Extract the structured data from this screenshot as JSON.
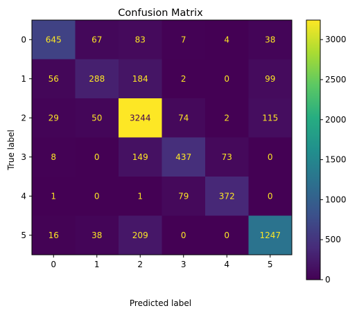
{
  "chart_data": {
    "type": "heatmap",
    "title": "Confusion Matrix",
    "xlabel": "Predicted label",
    "ylabel": "True label",
    "x_categories": [
      "0",
      "1",
      "2",
      "3",
      "4",
      "5"
    ],
    "y_categories": [
      "0",
      "1",
      "2",
      "3",
      "4",
      "5"
    ],
    "values": [
      [
        645,
        67,
        83,
        7,
        4,
        38
      ],
      [
        56,
        288,
        184,
        2,
        0,
        99
      ],
      [
        29,
        50,
        3244,
        74,
        2,
        115
      ],
      [
        8,
        0,
        149,
        437,
        73,
        0
      ],
      [
        1,
        0,
        1,
        79,
        372,
        0
      ],
      [
        16,
        38,
        209,
        0,
        0,
        1247
      ]
    ],
    "colormap": "viridis",
    "colorbar": {
      "range": [
        0,
        3244
      ],
      "ticks": [
        0,
        500,
        1000,
        1500,
        2000,
        2500,
        3000
      ]
    },
    "text_colors": {
      "on_dark": "#fde725",
      "on_light": "#440154"
    }
  }
}
